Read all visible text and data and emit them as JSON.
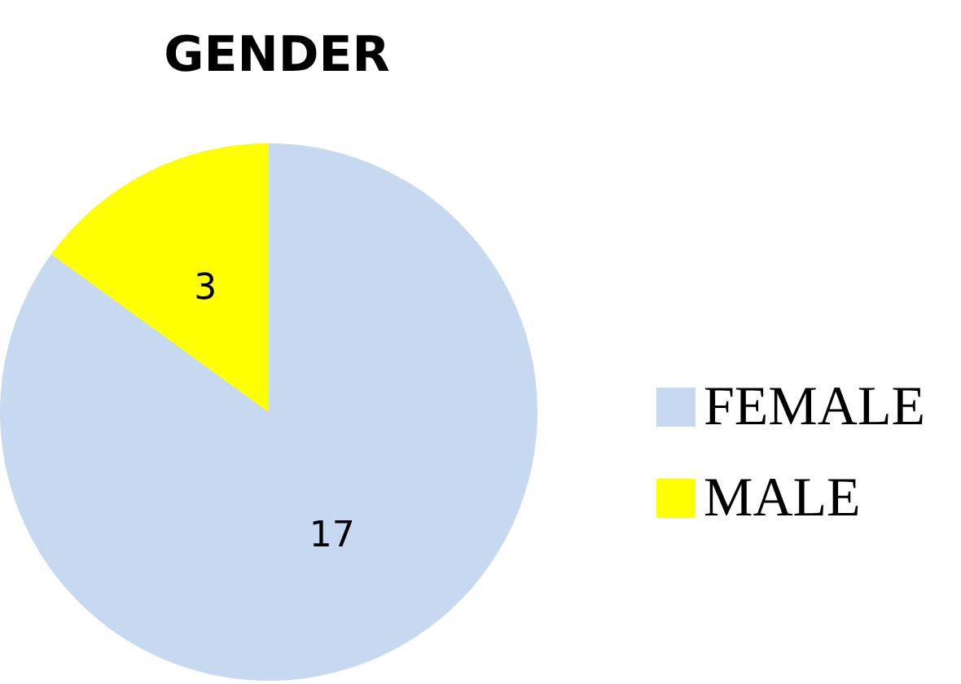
{
  "chart_data": {
    "type": "pie",
    "title": "GENDER",
    "categories": [
      "FEMALE",
      "MALE"
    ],
    "values": [
      17,
      3
    ],
    "colors": [
      "#c6d9f1",
      "#ffff00"
    ],
    "data_labels": true,
    "legend": "right"
  }
}
